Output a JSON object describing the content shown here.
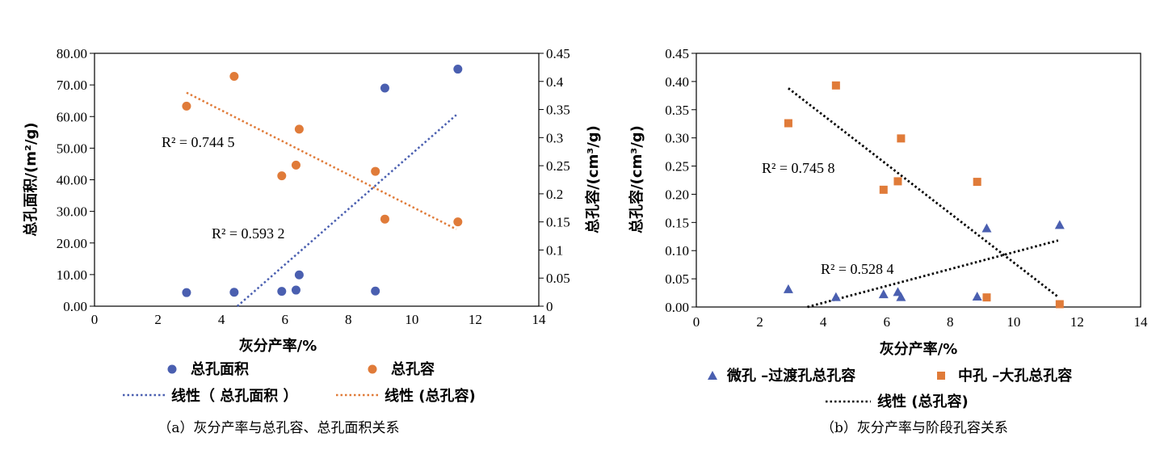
{
  "chart_data": [
    {
      "type": "scatter",
      "caption": "（a）灰分产率与总孔容、总孔面积关系",
      "xlabel": "灰分产率/%",
      "ylabel_left": "总孔面积/(m²/g)",
      "ylabel_right": "总孔容/(cm³/g)",
      "xlim": [
        0,
        14
      ],
      "ylim_left": [
        0,
        80
      ],
      "ylim_right": [
        0,
        0.45
      ],
      "x_ticks": [
        "0",
        "2",
        "4",
        "6",
        "8",
        "10",
        "12",
        "14"
      ],
      "y_left_ticks": [
        "0.00",
        "10.00",
        "20.00",
        "30.00",
        "40.00",
        "50.00",
        "60.00",
        "70.00",
        "80.00"
      ],
      "y_right_ticks": [
        "0",
        "0.05",
        "0.1",
        "0.15",
        "0.2",
        "0.25",
        "0.3",
        "0.35",
        "0.4",
        "0.45"
      ],
      "series": [
        {
          "name": "总孔面积",
          "axis": "left",
          "color": "#4a5fb0",
          "marker": "circle",
          "x": [
            2.9,
            4.4,
            5.9,
            6.35,
            6.45,
            8.85,
            9.15,
            11.45
          ],
          "y": [
            4.3,
            4.4,
            4.7,
            5.1,
            9.9,
            4.8,
            69.0,
            75.0
          ]
        },
        {
          "name": "总孔容",
          "axis": "right",
          "color": "#e07b39",
          "marker": "circle",
          "x": [
            2.9,
            4.4,
            5.9,
            6.35,
            6.45,
            8.85,
            9.15,
            11.45
          ],
          "y": [
            0.356,
            0.409,
            0.232,
            0.251,
            0.315,
            0.24,
            0.155,
            0.15
          ]
        }
      ],
      "trendlines": [
        {
          "name": "线性（ 总孔面积 ）",
          "axis": "left",
          "color": "#4a5fb0",
          "x": [
            4.5,
            11.4
          ],
          "y": [
            0,
            60.5
          ],
          "r2_label": "R² = 0.593 2"
        },
        {
          "name": "线性 (总孔容)",
          "axis": "right",
          "color": "#e07b39",
          "x": [
            2.9,
            11.4
          ],
          "y": [
            0.38,
            0.137
          ],
          "r2_label": "R² = 0.744 5"
        }
      ]
    },
    {
      "type": "scatter",
      "caption": "（b）灰分产率与阶段孔容关系",
      "xlabel": "灰分产率/%",
      "ylabel": "总孔容/(cm³/g)",
      "xlim": [
        0,
        14
      ],
      "ylim": [
        0,
        0.45
      ],
      "x_ticks": [
        "0",
        "2",
        "4",
        "6",
        "8",
        "10",
        "12",
        "14"
      ],
      "y_ticks": [
        "0.00",
        "0.05",
        "0.10",
        "0.15",
        "0.20",
        "0.25",
        "0.30",
        "0.35",
        "0.40",
        "0.45"
      ],
      "series": [
        {
          "name": "微孔 –过渡孔总孔容",
          "color": "#4a5fb0",
          "marker": "triangle",
          "x": [
            2.9,
            4.4,
            5.9,
            6.35,
            6.45,
            8.85,
            9.15,
            11.45
          ],
          "y": [
            0.031,
            0.017,
            0.022,
            0.026,
            0.017,
            0.018,
            0.139,
            0.145
          ]
        },
        {
          "name": "中孔 –大孔总孔容",
          "color": "#e07b39",
          "marker": "square",
          "x": [
            2.9,
            4.4,
            5.9,
            6.35,
            6.45,
            8.85,
            9.15,
            11.45
          ],
          "y": [
            0.326,
            0.393,
            0.208,
            0.223,
            0.299,
            0.222,
            0.017,
            0.005
          ]
        }
      ],
      "trendlines": [
        {
          "name": "线性 (总孔容)",
          "color": "#000000",
          "x": [
            2.9,
            11.4
          ],
          "y": [
            0.388,
            0.018
          ],
          "r2_label": "R² = 0.745 8"
        },
        {
          "name": "",
          "color": "#000000",
          "x": [
            3.5,
            11.4
          ],
          "y": [
            0,
            0.118
          ],
          "r2_label": "R² = 0.528 4"
        }
      ]
    }
  ]
}
